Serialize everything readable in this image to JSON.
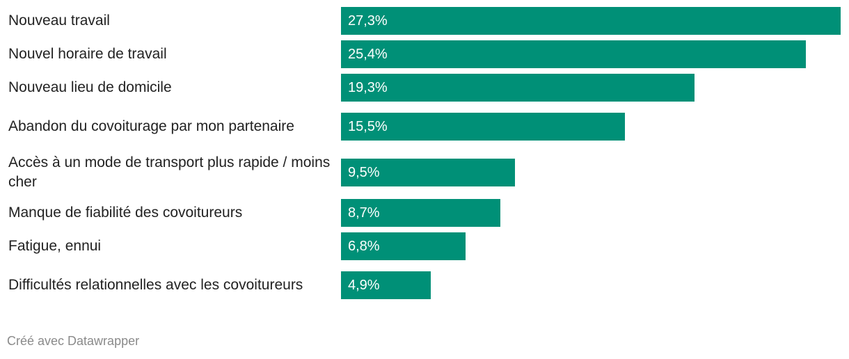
{
  "chart_data": {
    "type": "bar",
    "orientation": "horizontal",
    "categories": [
      "Nouveau travail",
      "Nouvel horaire de travail",
      "Nouveau lieu de domicile",
      "Abandon du covoiturage par mon partenaire",
      "Accès à un mode de transport plus rapide / moins cher",
      "Manque de fiabilité des covoitureurs",
      "Fatigue, ennui",
      "Difficultés relationnelles avec les covoitureurs"
    ],
    "values": [
      27.3,
      25.4,
      19.3,
      15.5,
      9.5,
      8.7,
      6.8,
      4.9
    ],
    "value_labels": [
      "27,3%",
      "25,4%",
      "19,3%",
      "15,5%",
      "9,5%",
      "8,7%",
      "6,8%",
      "4,9%"
    ],
    "bar_color": "#009077",
    "grid": false,
    "legend": "none"
  },
  "footer": {
    "credit": "Créé avec Datawrapper"
  }
}
